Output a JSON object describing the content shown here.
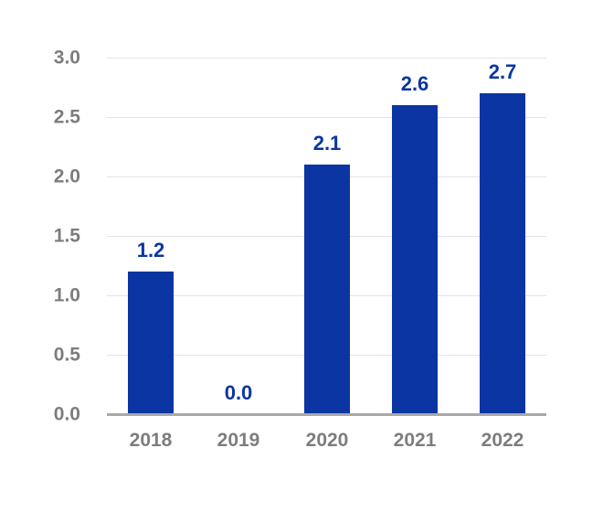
{
  "chart_data": {
    "type": "bar",
    "title": "",
    "xlabel": "",
    "ylabel": "",
    "categories": [
      "2018",
      "2019",
      "2020",
      "2021",
      "2022"
    ],
    "values": [
      1.2,
      0.0,
      2.1,
      2.6,
      2.7
    ],
    "data_labels": [
      "1.2",
      "0.0",
      "2.1",
      "2.6",
      "2.7"
    ],
    "yticks": [
      "0.0",
      "0.5",
      "1.0",
      "1.5",
      "2.0",
      "2.5",
      "3.0"
    ],
    "ytick_values": [
      0.0,
      0.5,
      1.0,
      1.5,
      2.0,
      2.5,
      3.0
    ],
    "ylim": [
      0,
      3.0
    ],
    "grid": true,
    "legend": false,
    "colors": {
      "bar": "#0a35a3",
      "data_label": "#0a35a3",
      "grid": "#e4e4e4",
      "axis_line": "#a9a9a9",
      "tick_label": "#7d7d7d",
      "background": "#ffffff"
    }
  }
}
